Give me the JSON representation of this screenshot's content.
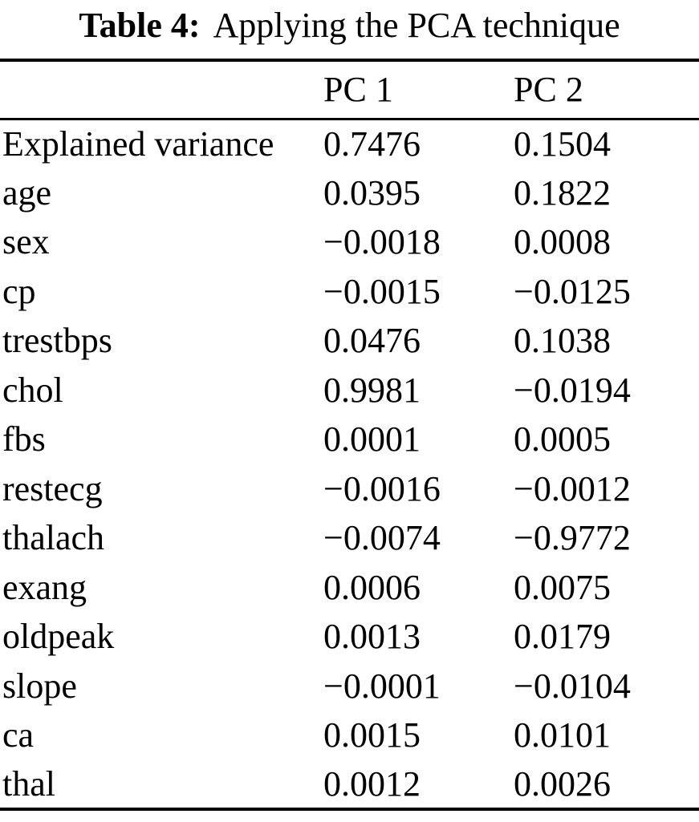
{
  "caption": {
    "label": "Table 4:",
    "text": "Applying the PCA technique"
  },
  "table": {
    "headers": [
      "",
      "PC 1",
      "PC 2"
    ],
    "rows": [
      {
        "feature": "Explained variance",
        "pc1": "0.7476",
        "pc2": "0.1504"
      },
      {
        "feature": "age",
        "pc1": "0.0395",
        "pc2": "0.1822"
      },
      {
        "feature": "sex",
        "pc1": "−0.0018",
        "pc2": "0.0008"
      },
      {
        "feature": "cp",
        "pc1": "−0.0015",
        "pc2": "−0.0125"
      },
      {
        "feature": "trestbps",
        "pc1": "0.0476",
        "pc2": "0.1038"
      },
      {
        "feature": "chol",
        "pc1": "0.9981",
        "pc2": "−0.0194"
      },
      {
        "feature": "fbs",
        "pc1": "0.0001",
        "pc2": "0.0005"
      },
      {
        "feature": "restecg",
        "pc1": "−0.0016",
        "pc2": "−0.0012"
      },
      {
        "feature": "thalach",
        "pc1": "−0.0074",
        "pc2": "−0.9772"
      },
      {
        "feature": "exang",
        "pc1": "0.0006",
        "pc2": "0.0075"
      },
      {
        "feature": "oldpeak",
        "pc1": "0.0013",
        "pc2": "0.0179"
      },
      {
        "feature": "slope",
        "pc1": "−0.0001",
        "pc2": "−0.0104"
      },
      {
        "feature": "ca",
        "pc1": "0.0015",
        "pc2": "0.0101"
      },
      {
        "feature": "thal",
        "pc1": "0.0012",
        "pc2": "0.0026"
      }
    ]
  }
}
